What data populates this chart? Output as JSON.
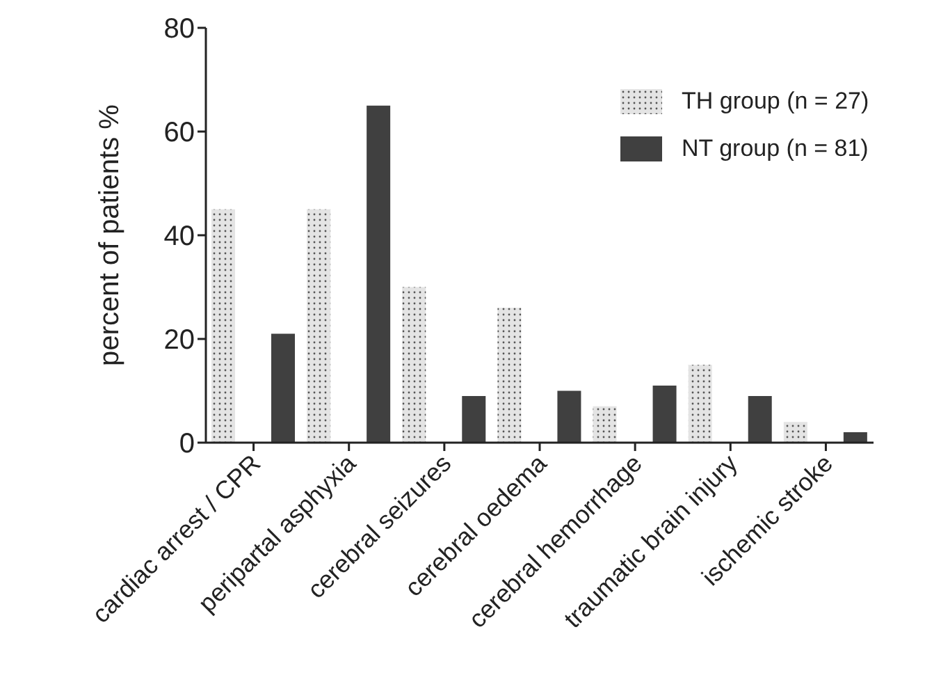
{
  "chart_data": {
    "type": "bar",
    "ylabel": "percent of patients %",
    "categories": [
      "cardiac arrest / CPR",
      "peripartal asphyxia",
      "cerebral seizures",
      "cerebral oedema",
      "cerebral hemorrhage",
      "traumatic brain injury",
      "ischemic stroke"
    ],
    "series": [
      {
        "name": "TH group (n = 27)",
        "color": "#e4e4e4",
        "values": [
          45,
          45,
          30,
          26,
          7,
          15,
          4
        ]
      },
      {
        "name": "NT group (n = 81)",
        "color": "#404040",
        "values": [
          21,
          65,
          9,
          10,
          11,
          9,
          2
        ]
      }
    ],
    "ylim": [
      0,
      80
    ],
    "yticks": [
      0,
      20,
      40,
      60,
      80
    ],
    "grid": false,
    "legend": "top right"
  }
}
